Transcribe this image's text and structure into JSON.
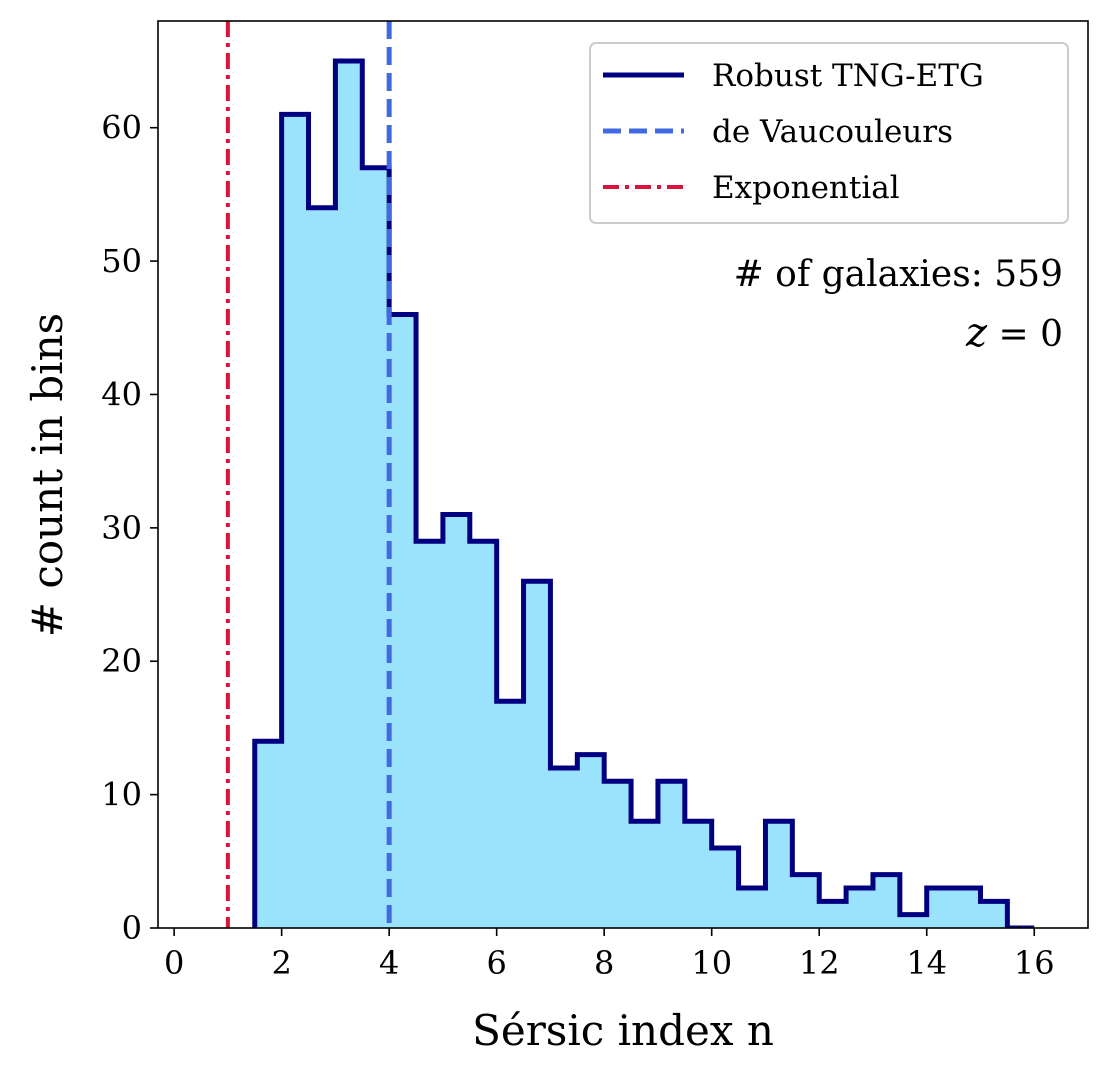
{
  "chart_data": {
    "type": "histogram",
    "title": "",
    "xlabel": "Sérsic index n",
    "ylabel": "# count in bins",
    "xlim": [
      -0.3,
      17.0
    ],
    "ylim": [
      0,
      68
    ],
    "x_ticks": [
      0,
      2,
      4,
      6,
      8,
      10,
      12,
      14,
      16
    ],
    "y_ticks": [
      0,
      10,
      20,
      30,
      40,
      50,
      60
    ],
    "bin_edges": [
      1.5,
      2.0,
      2.5,
      3.0,
      3.5,
      4.0,
      4.5,
      5.0,
      5.5,
      6.0,
      6.5,
      7.0,
      7.5,
      8.0,
      8.5,
      9.0,
      9.5,
      10.0,
      10.5,
      11.0,
      11.5,
      12.0,
      12.5,
      13.0,
      13.5,
      14.0,
      14.5,
      15.0,
      15.5,
      16.0
    ],
    "counts": [
      14,
      61,
      54,
      65,
      57,
      46,
      29,
      31,
      29,
      17,
      26,
      12,
      13,
      11,
      8,
      11,
      8,
      6,
      3,
      8,
      4,
      2,
      3,
      4,
      1,
      3,
      3,
      2,
      0
    ],
    "series": [
      {
        "name": "Robust TNG-ETG",
        "type": "step-filled",
        "color": "#000080",
        "fill": "#9be3fd"
      },
      {
        "name": "de Vaucouleurs",
        "type": "vline",
        "x": 4,
        "color": "#4169e1",
        "style": "dashed"
      },
      {
        "name": "Exponential",
        "type": "vline",
        "x": 1,
        "color": "#dc143c",
        "style": "dashdot"
      }
    ],
    "legend_position": "top-right",
    "annotations": [
      "# of galaxies: 559",
      "z = 0"
    ]
  },
  "annotations": {
    "galaxies": "# of galaxies: 559",
    "redshift_var": "z",
    "redshift_eq": " = 0"
  }
}
